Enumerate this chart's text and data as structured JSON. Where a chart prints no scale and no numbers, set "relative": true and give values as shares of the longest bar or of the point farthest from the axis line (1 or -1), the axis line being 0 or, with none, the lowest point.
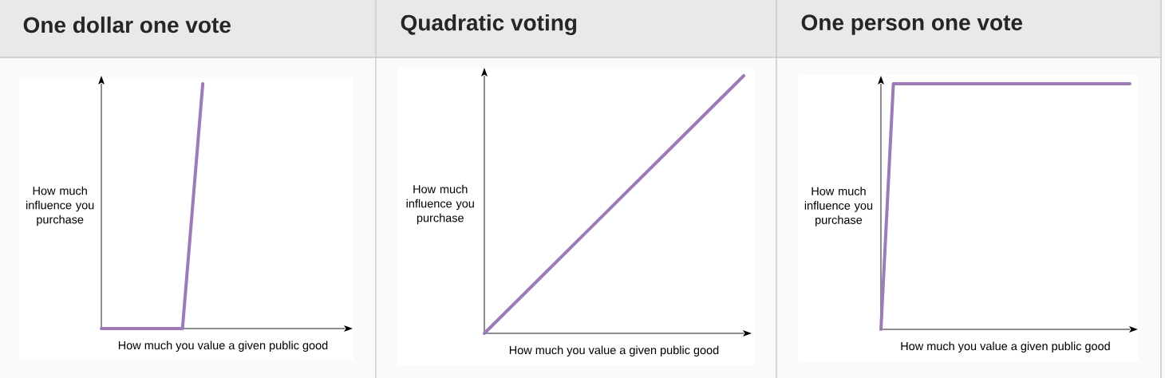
{
  "chart_data": [
    {
      "type": "line",
      "title": "One dollar one vote",
      "xlabel": "How much you value a given public good",
      "ylabel": "How much influence you purchase",
      "relative": true,
      "categories": [
        null,
        null,
        null,
        null,
        null,
        null,
        null,
        null,
        null,
        null,
        null,
        null,
        null
      ],
      "color": "#9c7bb6",
      "values": [
        0,
        null,
        null,
        null,
        0,
        1,
        null,
        null,
        null,
        null,
        null,
        null,
        null
      ]
    },
    {
      "type": "line",
      "title": "Quadratic voting",
      "xlabel": "How much you value a given public good",
      "ylabel": "How much influence you purchase",
      "relative": true,
      "categories": [
        null,
        null
      ],
      "color": "#9c7bb6",
      "values": [
        0,
        1
      ]
    },
    {
      "type": "line",
      "title": "One person one vote",
      "xlabel": "How much you value a given public good",
      "ylabel": "How much influence you purchase",
      "relative": true,
      "categories": [
        null,
        null,
        null,
        null,
        null,
        null,
        null,
        null,
        null,
        null,
        null,
        null,
        null,
        null,
        null,
        null,
        null,
        null,
        null,
        null,
        null
      ],
      "color": "#9c7bb6",
      "values": [
        0,
        1,
        null,
        null,
        null,
        null,
        null,
        null,
        null,
        null,
        null,
        null,
        null,
        null,
        null,
        null,
        null,
        null,
        null,
        null,
        1
      ]
    }
  ]
}
